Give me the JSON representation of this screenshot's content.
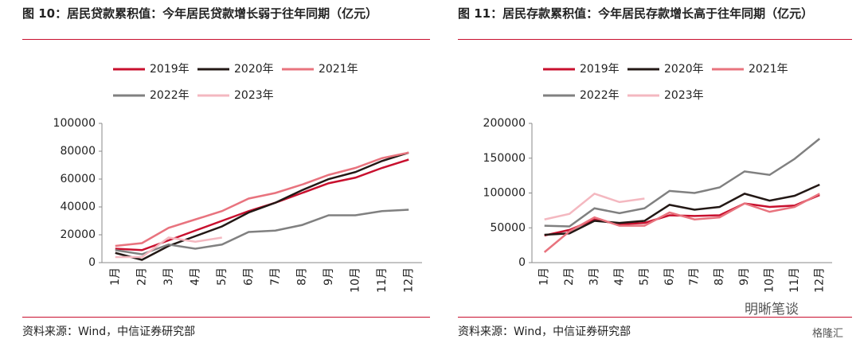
{
  "chart_data": [
    {
      "type": "line",
      "title": "图 10：居民贷款累积值：今年居民贷款增长弱于往年同期（亿元）",
      "source": "资料来源：Wind，中信证券研究部",
      "categories": [
        "1月",
        "2月",
        "3月",
        "4月",
        "5月",
        "6月",
        "7月",
        "8月",
        "9月",
        "10月",
        "11月",
        "12月"
      ],
      "ylim": [
        0,
        100000
      ],
      "yticks": [
        0,
        20000,
        40000,
        60000,
        80000,
        100000
      ],
      "series": [
        {
          "name": "2019年",
          "color": "#c8102e",
          "values": [
            10000,
            9000,
            16000,
            23000,
            30000,
            37000,
            43000,
            50000,
            57000,
            61000,
            68000,
            74000
          ]
        },
        {
          "name": "2020年",
          "color": "#231815",
          "values": [
            7000,
            2000,
            12000,
            19000,
            26000,
            36000,
            43000,
            52000,
            60000,
            65000,
            73000,
            79000
          ]
        },
        {
          "name": "2021年",
          "color": "#e8737e",
          "values": [
            12000,
            14000,
            25000,
            31000,
            37000,
            46000,
            50000,
            56000,
            63000,
            68000,
            75000,
            79000
          ]
        },
        {
          "name": "2022年",
          "color": "#808080",
          "values": [
            9000,
            6000,
            13000,
            10000,
            13000,
            22000,
            23000,
            27000,
            34000,
            34000,
            37000,
            38000
          ]
        },
        {
          "name": "2023年",
          "color": "#f4b8c0",
          "values": [
            4000,
            4000,
            18000,
            15000,
            18000,
            null,
            null,
            null,
            null,
            null,
            null,
            null
          ]
        }
      ]
    },
    {
      "type": "line",
      "title": "图 11：居民存款累积值：今年居民存款增长高于往年同期（亿元）",
      "source": "资料来源：Wind，中信证券研究部",
      "categories": [
        "1月",
        "2月",
        "3月",
        "4月",
        "5月",
        "6月",
        "7月",
        "8月",
        "9月",
        "10月",
        "11月",
        "12月"
      ],
      "ylim": [
        0,
        200000
      ],
      "yticks": [
        0,
        50000,
        100000,
        150000,
        200000
      ],
      "series": [
        {
          "name": "2019年",
          "color": "#c8102e",
          "values": [
            39000,
            47000,
            62000,
            55000,
            57000,
            68000,
            67000,
            68000,
            85000,
            80000,
            82000,
            97000
          ]
        },
        {
          "name": "2020年",
          "color": "#231815",
          "values": [
            40000,
            42000,
            60000,
            57000,
            60000,
            83000,
            76000,
            80000,
            99000,
            89000,
            96000,
            112000
          ]
        },
        {
          "name": "2021年",
          "color": "#e8737e",
          "values": [
            15000,
            45000,
            65000,
            53000,
            53000,
            72000,
            62000,
            65000,
            85000,
            73000,
            80000,
            99000
          ]
        },
        {
          "name": "2022年",
          "color": "#808080",
          "values": [
            53000,
            52000,
            78000,
            71000,
            78000,
            103000,
            100000,
            108000,
            131000,
            126000,
            149000,
            178000
          ]
        },
        {
          "name": "2023年",
          "color": "#f4b8c0",
          "values": [
            62000,
            70000,
            99000,
            87000,
            92000,
            null,
            null,
            null,
            null,
            null,
            null,
            null
          ]
        }
      ]
    }
  ],
  "watermark": [
    "明晰笔谈",
    "格隆汇"
  ]
}
